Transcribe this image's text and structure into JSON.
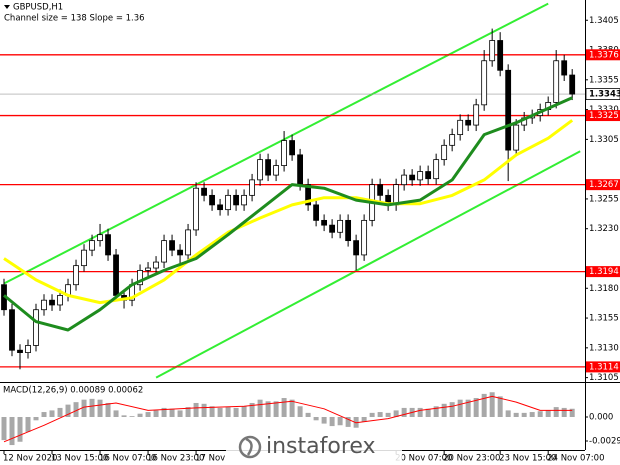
{
  "chart_data": {
    "type": "candlestick",
    "title": "GBPUSD,H1",
    "subtitle": "Channel size = 138 Slope = 1.36",
    "xlim": [
      -0.5,
      72.6
    ],
    "ylim": [
      1.3103,
      1.3422
    ],
    "yticks": [
      1.3405,
      {
        "value": 1.338,
        "label": "1.3380"
      },
      1.3355,
      {
        "value": 1.333,
        "label": "1.3330"
      },
      1.3305,
      1.3255,
      {
        "value": 1.323,
        "label": "1.3230"
      },
      {
        "value": 1.318,
        "label": "1.3180"
      },
      1.3155,
      {
        "value": 1.313,
        "label": "1.3130"
      },
      1.3105
    ],
    "xticks": [
      {
        "value": 0,
        "label": "12 Nov 2020"
      },
      {
        "value": 6,
        "label": "13 Nov 15:00"
      },
      {
        "value": 12,
        "label": "16 Nov 07:00"
      },
      {
        "value": 18,
        "label": "16 Nov 23:00"
      },
      {
        "value": 24,
        "label": "17 Nov"
      },
      {
        "value": 49,
        "label": "20 Nov 07:00"
      },
      {
        "value": 55,
        "label": "20 Nov 23:00"
      },
      {
        "value": 62,
        "label": "23 Nov 15:00"
      },
      {
        "value": 68,
        "label": "24 Nov 07:00"
      }
    ],
    "open": [
      1.3183,
      1.3162,
      1.3128,
      1.3126,
      1.3132,
      1.3162,
      1.317,
      1.3166,
      1.3174,
      1.3183,
      1.3199,
      1.3212,
      1.322,
      1.3225,
      1.3208,
      1.3174,
      1.317,
      1.3183,
      1.3195,
      1.3197,
      1.3202,
      1.322,
      1.3212,
      1.3208,
      1.3229,
      1.3264,
      1.3258,
      1.325,
      1.3246,
      1.3258,
      1.325,
      1.3258,
      1.3271,
      1.3288,
      1.3275,
      1.3283,
      1.3304,
      1.3292,
      1.3267,
      1.325,
      1.3237,
      1.3233,
      1.3227,
      1.3237,
      1.322,
      1.3208,
      1.3237,
      1.3267,
      1.3258,
      1.325,
      1.3267,
      1.3275,
      1.3271,
      1.3278,
      1.3272,
      1.3288,
      1.33,
      1.3309,
      1.3321,
      1.3317,
      1.3334,
      1.3371,
      1.3388,
      1.3363,
      1.3296,
      1.3317,
      1.3323,
      1.3325,
      1.333,
      1.3336,
      1.3371,
      1.3359
    ],
    "high": [
      1.3188,
      1.3167,
      1.3133,
      1.3137,
      1.3167,
      1.3175,
      1.3175,
      1.3179,
      1.3188,
      1.3204,
      1.3217,
      1.3225,
      1.3234,
      1.323,
      1.3213,
      1.3179,
      1.3188,
      1.32,
      1.3202,
      1.3207,
      1.3225,
      1.3225,
      1.3217,
      1.3234,
      1.3269,
      1.3269,
      1.3263,
      1.3255,
      1.3263,
      1.3263,
      1.3263,
      1.3276,
      1.3293,
      1.3293,
      1.3288,
      1.3312,
      1.3309,
      1.3297,
      1.3272,
      1.3255,
      1.3242,
      1.3238,
      1.3242,
      1.3242,
      1.3225,
      1.3242,
      1.3272,
      1.3272,
      1.3263,
      1.3272,
      1.328,
      1.328,
      1.3283,
      1.3283,
      1.3293,
      1.3305,
      1.3314,
      1.3326,
      1.3326,
      1.3339,
      1.338,
      1.3398,
      1.3395,
      1.3368,
      1.3322,
      1.3328,
      1.333,
      1.3335,
      1.3341,
      1.338,
      1.3376,
      1.3364
    ],
    "low": [
      1.3157,
      1.3123,
      1.3112,
      1.3121,
      1.3127,
      1.3157,
      1.3161,
      1.3161,
      1.3169,
      1.3178,
      1.3194,
      1.3207,
      1.3215,
      1.3203,
      1.3169,
      1.3163,
      1.3165,
      1.3178,
      1.319,
      1.3192,
      1.3197,
      1.3207,
      1.32,
      1.3203,
      1.3224,
      1.3253,
      1.3245,
      1.3241,
      1.3241,
      1.3245,
      1.3245,
      1.3253,
      1.3266,
      1.327,
      1.327,
      1.3278,
      1.3287,
      1.3262,
      1.3245,
      1.3232,
      1.3228,
      1.3222,
      1.3222,
      1.3215,
      1.3195,
      1.3203,
      1.3232,
      1.3253,
      1.3245,
      1.3245,
      1.3262,
      1.3266,
      1.3266,
      1.3267,
      1.3267,
      1.3283,
      1.3295,
      1.3304,
      1.3312,
      1.3312,
      1.3329,
      1.3366,
      1.3358,
      1.327,
      1.3291,
      1.3312,
      1.3318,
      1.332,
      1.3325,
      1.3331,
      1.3354,
      1.3338
    ],
    "close": [
      1.3162,
      1.3128,
      1.3126,
      1.3132,
      1.3162,
      1.317,
      1.3166,
      1.3174,
      1.3183,
      1.3199,
      1.3212,
      1.322,
      1.3225,
      1.3208,
      1.3174,
      1.317,
      1.3183,
      1.3195,
      1.3197,
      1.3202,
      1.322,
      1.3212,
      1.3208,
      1.3229,
      1.3264,
      1.3258,
      1.325,
      1.3246,
      1.3258,
      1.325,
      1.3258,
      1.3271,
      1.3288,
      1.3275,
      1.3283,
      1.3304,
      1.3292,
      1.3267,
      1.325,
      1.3237,
      1.3233,
      1.3227,
      1.3237,
      1.322,
      1.3208,
      1.3237,
      1.3267,
      1.3258,
      1.325,
      1.3267,
      1.3275,
      1.3271,
      1.3278,
      1.3272,
      1.3288,
      1.33,
      1.3309,
      1.3321,
      1.3317,
      1.3334,
      1.3371,
      1.3388,
      1.3363,
      1.3296,
      1.3317,
      1.3323,
      1.3325,
      1.333,
      1.3336,
      1.3371,
      1.3359,
      1.3343
    ],
    "up_color": "#ffffff",
    "down_color": "#000000",
    "ma_fast": {
      "color": "#1e8c1e",
      "x": [
        0,
        4,
        8,
        12,
        16,
        20,
        24,
        28,
        32,
        36,
        40,
        44,
        48,
        52,
        56,
        60,
        64,
        68,
        71
      ],
      "values": [
        1.3174,
        1.3152,
        1.3145,
        1.3162,
        1.3183,
        1.3195,
        1.3205,
        1.3225,
        1.3246,
        1.3267,
        1.3264,
        1.3254,
        1.325,
        1.3254,
        1.3271,
        1.3309,
        1.3319,
        1.3331,
        1.334
      ]
    },
    "ma_slow": {
      "color": "#ffff00",
      "x": [
        0,
        4,
        8,
        12,
        16,
        20,
        24,
        28,
        32,
        36,
        40,
        44,
        48,
        52,
        56,
        60,
        64,
        68,
        71
      ],
      "values": [
        1.3205,
        1.3187,
        1.3174,
        1.3168,
        1.3172,
        1.3187,
        1.3208,
        1.3227,
        1.3239,
        1.325,
        1.3256,
        1.3256,
        1.3251,
        1.3251,
        1.3258,
        1.3271,
        1.3292,
        1.3306,
        1.3321
      ]
    },
    "channel_color": "#33ee33",
    "channel_upper": {
      "x": [
        0,
        68
      ],
      "values": [
        1.3184,
        1.3419
      ]
    },
    "channel_lower": {
      "x": [
        19,
        72
      ],
      "values": [
        1.3105,
        1.3295
      ]
    },
    "levels": {
      "color": "#ff0000",
      "values": [
        1.3376,
        1.3325,
        1.3267,
        1.3194,
        1.3114
      ]
    },
    "current_price": 1.3343,
    "macd": {
      "title": "MACD(12,26,9) 0.00089 0.00062",
      "ylim": [
        -0.004,
        0.004
      ],
      "yticks": [
        {
          "value": 0,
          "label": "0.000"
        },
        -0.00291
      ],
      "histogram_color": "#a8a8a8",
      "histogram": [
        -0.0028,
        -0.0034,
        -0.003,
        -0.0018,
        -0.0004,
        0.0006,
        0.0008,
        0.0011,
        0.0015,
        0.0018,
        0.0021,
        0.0022,
        0.0021,
        0.0017,
        0.0008,
        0.0002,
        0.0001,
        0.0004,
        0.0006,
        0.0008,
        0.0011,
        0.001,
        0.0008,
        0.0012,
        0.0017,
        0.0016,
        0.0013,
        0.0011,
        0.0012,
        0.0011,
        0.0013,
        0.0017,
        0.0021,
        0.0019,
        0.0019,
        0.0023,
        0.0021,
        0.0013,
        0.0005,
        -0.0004,
        -0.0008,
        -0.0011,
        -0.001,
        -0.0012,
        -0.0013,
        -0.0006,
        0.0005,
        0.0006,
        0.0005,
        0.0008,
        0.0011,
        0.0011,
        0.0011,
        0.001,
        0.0013,
        0.0016,
        0.0018,
        0.0021,
        0.0021,
        0.0023,
        0.0028,
        0.003,
        0.0025,
        0.0008,
        0.0005,
        0.0005,
        0.0006,
        0.0007,
        0.0008,
        0.0012,
        0.0011,
        0.001
      ],
      "signal": {
        "color": "#ff0000",
        "x": [
          0,
          5,
          10,
          14,
          18,
          24,
          30,
          36,
          40,
          44,
          48,
          52,
          56,
          61,
          64,
          67,
          71
        ],
        "values": [
          -0.003,
          -0.001,
          0.0012,
          0.0017,
          0.0008,
          0.0011,
          0.0013,
          0.0019,
          0.001,
          -0.0007,
          -0.0002,
          0.0008,
          0.0013,
          0.0025,
          0.0018,
          0.0008,
          0.0008
        ]
      }
    },
    "watermark": "instaforex"
  }
}
